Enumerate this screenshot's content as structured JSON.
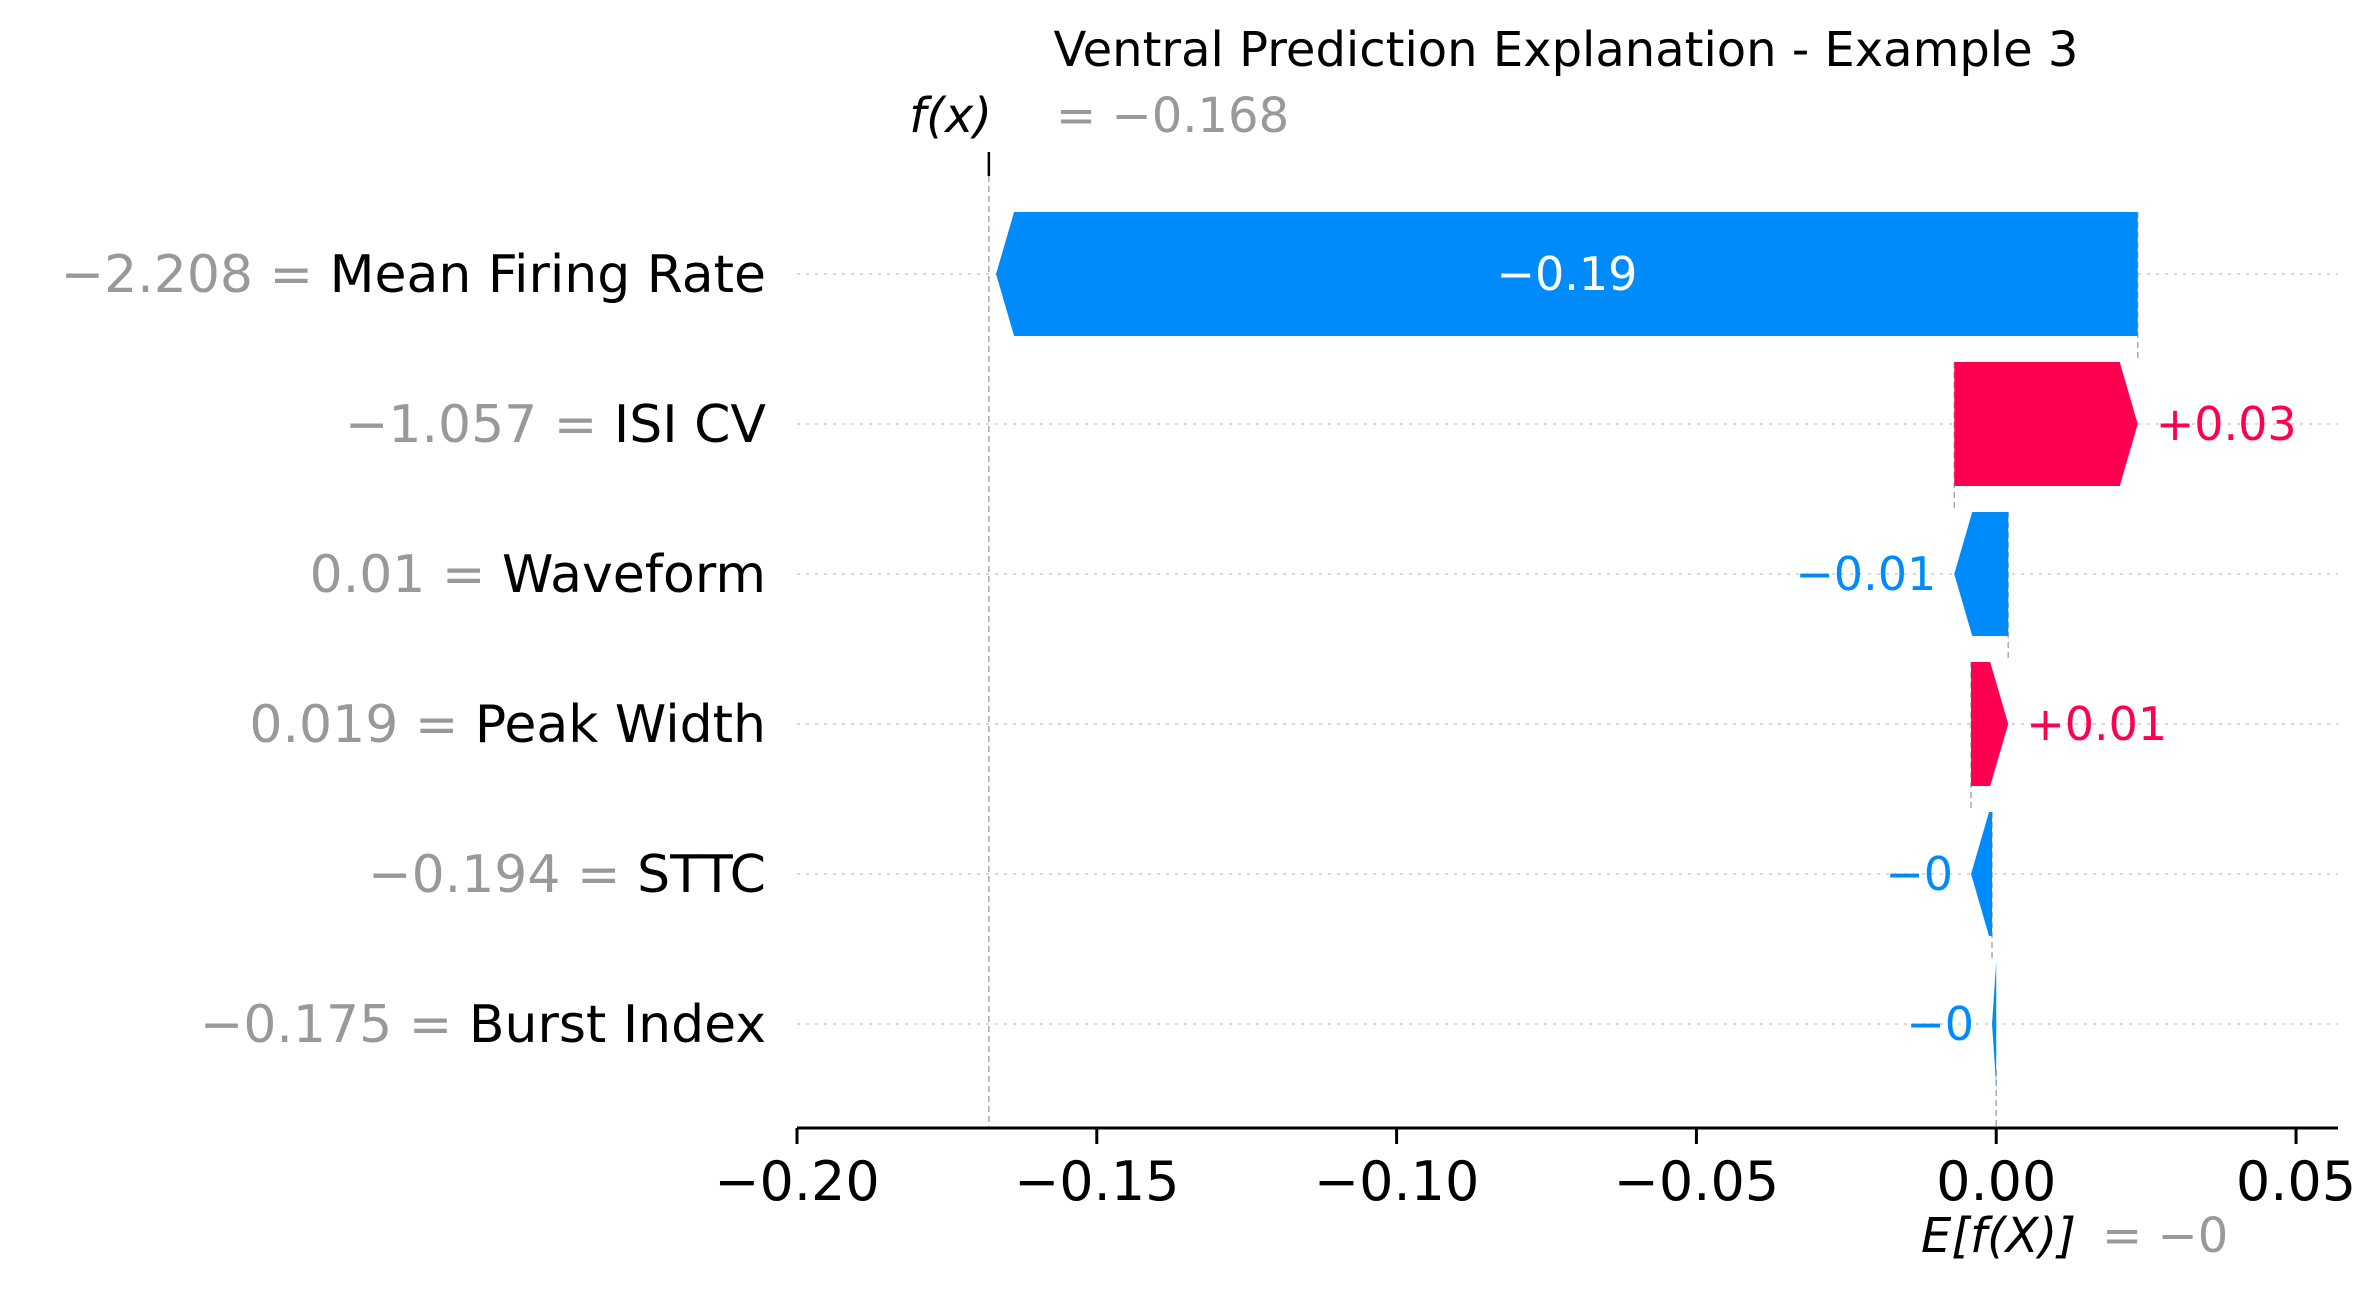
{
  "chart_data": {
    "type": "waterfall",
    "title": "Ventral Prediction Explanation - Example 3",
    "fx_label": "f(x)",
    "fx_value": "−0.168",
    "fx_value_num": -0.168,
    "efx_label": "E[f(X)]",
    "efx_value": "−0",
    "efx_value_num": 0.0,
    "xlim": [
      -0.2,
      0.057
    ],
    "xticks": [
      -0.2,
      -0.15,
      -0.1,
      -0.05,
      0.0,
      0.05
    ],
    "xtick_labels": [
      "−0.20",
      "−0.15",
      "−0.10",
      "−0.05",
      "0.00",
      "0.05"
    ],
    "colors": {
      "negative": "#008bfb",
      "positive": "#ff0051",
      "muted": "#999999"
    },
    "features": [
      {
        "name": "Mean Firing Rate",
        "feature_value": "−2.208",
        "contribution": -0.1904,
        "label": "−0.19",
        "start": 0.0236,
        "end": -0.1668
      },
      {
        "name": "ISI CV",
        "feature_value": "−1.057",
        "contribution": 0.0306,
        "label": "+0.03",
        "start": -0.007,
        "end": 0.0236
      },
      {
        "name": "Waveform",
        "feature_value": "0.01",
        "contribution": -0.009,
        "label": "−0.01",
        "start": 0.002,
        "end": -0.007
      },
      {
        "name": "Peak Width",
        "feature_value": "0.019",
        "contribution": 0.0062,
        "label": "+0.01",
        "start": -0.0042,
        "end": 0.002
      },
      {
        "name": "STTC",
        "feature_value": "−0.194",
        "contribution": -0.0035,
        "label": "−0",
        "start": -0.0007,
        "end": -0.0042
      },
      {
        "name": "Burst Index",
        "feature_value": "−0.175",
        "contribution": -0.0007,
        "label": "−0",
        "start": 0.0,
        "end": -0.0007
      }
    ]
  }
}
